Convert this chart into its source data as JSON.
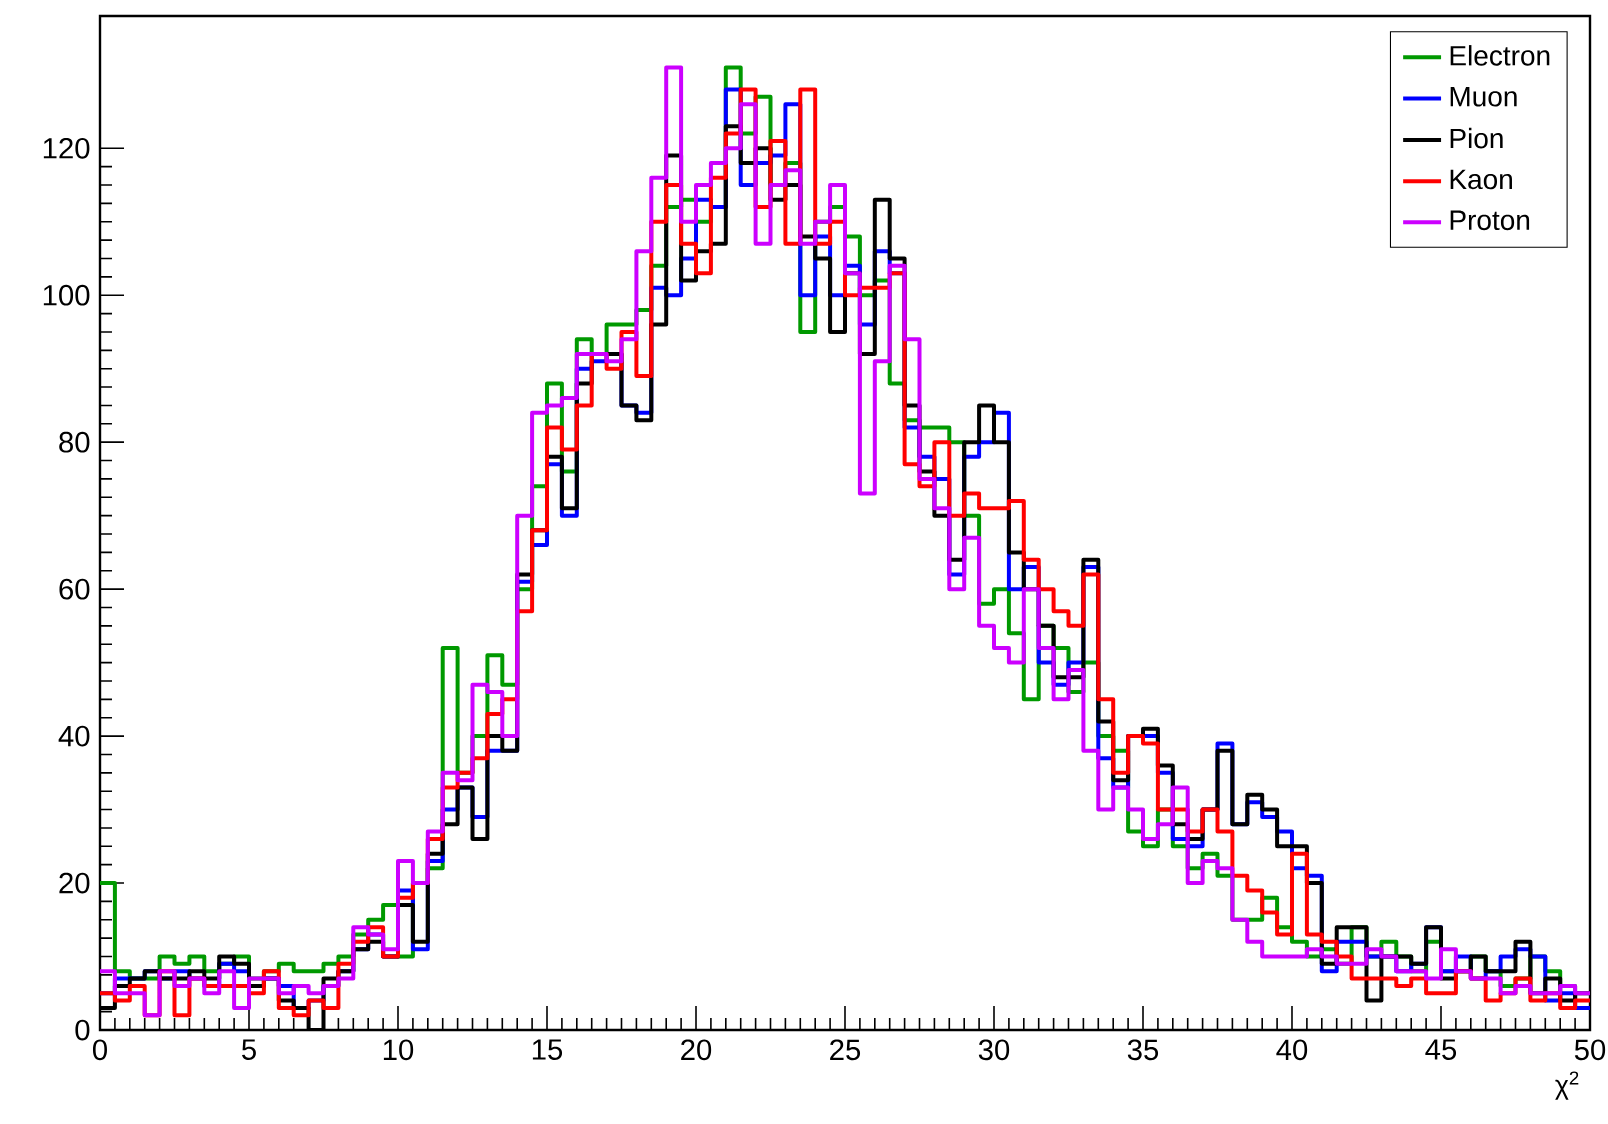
{
  "chart_data": {
    "type": "histogram",
    "xlabel": "χ$^{2}$",
    "bins": [
      0,
      0.5,
      1,
      1.5,
      2,
      2.5,
      3,
      3.5,
      4,
      4.5,
      5,
      5.5,
      6,
      6.5,
      7,
      7.5,
      8,
      8.5,
      9,
      9.5,
      10,
      10.5,
      11,
      11.5,
      12,
      12.5,
      13,
      13.5,
      14,
      14.5,
      15,
      15.5,
      16,
      16.5,
      17,
      17.5,
      18,
      18.5,
      19,
      19.5,
      20,
      20.5,
      21,
      21.5,
      22,
      22.5,
      23,
      23.5,
      24,
      24.5,
      25,
      25.5,
      26,
      26.5,
      27,
      27.5,
      28,
      28.5,
      29,
      29.5,
      30,
      30.5,
      31,
      31.5,
      32,
      32.5,
      33,
      33.5,
      34,
      34.5,
      35,
      35.5,
      36,
      36.5,
      37,
      37.5,
      38,
      38.5,
      39,
      39.5,
      40,
      40.5,
      41,
      41.5,
      42,
      42.5,
      43,
      43.5,
      44,
      44.5,
      45,
      45.5,
      46,
      46.5,
      47,
      47.5,
      48,
      48.5,
      49,
      49.5,
      50
    ],
    "series": [
      {
        "name": "Electron",
        "color": "#009900",
        "values": [
          20,
          8,
          7,
          7,
          10,
          9,
          10,
          8,
          9,
          10,
          7,
          8,
          9,
          8,
          8,
          9,
          10,
          13,
          15,
          17,
          10,
          20,
          22,
          52,
          35,
          40,
          51,
          47,
          60,
          74,
          88,
          76,
          94,
          92,
          96,
          96,
          98,
          104,
          112,
          113,
          110,
          112,
          131,
          122,
          127,
          115,
          118,
          95,
          110,
          112,
          108,
          100,
          102,
          88,
          83,
          82,
          82,
          80,
          70,
          58,
          60,
          54,
          45,
          55,
          52,
          46,
          50,
          40,
          38,
          27,
          25,
          30,
          25,
          22,
          24,
          21,
          15,
          15,
          18,
          14,
          12,
          10,
          11,
          9,
          14,
          10,
          12,
          10,
          8,
          12,
          8,
          8,
          10,
          8,
          6,
          7,
          10,
          8,
          6,
          3
        ]
      },
      {
        "name": "Muon",
        "color": "#0000ff",
        "values": [
          5,
          7,
          7,
          8,
          7,
          8,
          7,
          6,
          9,
          8,
          6,
          7,
          6,
          3,
          4,
          6,
          8,
          11,
          13,
          10,
          19,
          11,
          23,
          30,
          33,
          29,
          38,
          38,
          61,
          66,
          77,
          70,
          90,
          91,
          92,
          85,
          84,
          101,
          100,
          105,
          113,
          112,
          128,
          115,
          118,
          119,
          126,
          100,
          108,
          100,
          104,
          96,
          106,
          103,
          82,
          78,
          75,
          62,
          78,
          80,
          84,
          60,
          63,
          50,
          47,
          50,
          63,
          37,
          33,
          40,
          40,
          35,
          26,
          25,
          30,
          39,
          28,
          31,
          29,
          27,
          22,
          21,
          8,
          12,
          12,
          10,
          10,
          8,
          9,
          14,
          8,
          10,
          7,
          8,
          10,
          11,
          10,
          4,
          5,
          3
        ]
      },
      {
        "name": "Pion",
        "color": "#000000",
        "values": [
          3,
          6,
          7,
          8,
          7,
          7,
          8,
          7,
          10,
          9,
          6,
          7,
          4,
          3,
          0,
          7,
          8,
          11,
          12,
          10,
          17,
          12,
          24,
          28,
          33,
          26,
          40,
          38,
          62,
          68,
          78,
          71,
          88,
          92,
          92,
          85,
          83,
          96,
          119,
          102,
          106,
          107,
          123,
          118,
          120,
          113,
          115,
          108,
          105,
          95,
          103,
          92,
          113,
          105,
          85,
          76,
          70,
          64,
          80,
          85,
          80,
          65,
          60,
          55,
          48,
          48,
          64,
          42,
          34,
          40,
          41,
          36,
          28,
          26,
          30,
          38,
          28,
          32,
          30,
          25,
          25,
          20,
          9,
          14,
          14,
          4,
          10,
          10,
          9,
          14,
          7,
          8,
          10,
          8,
          8,
          12,
          5,
          7,
          4,
          5
        ]
      },
      {
        "name": "Kaon",
        "color": "#ff0000",
        "values": [
          5,
          4,
          6,
          2,
          8,
          2,
          7,
          6,
          6,
          6,
          5,
          8,
          3,
          2,
          4,
          3,
          9,
          12,
          14,
          10,
          18,
          20,
          26,
          33,
          35,
          37,
          43,
          45,
          57,
          68,
          82,
          79,
          85,
          92,
          90,
          95,
          89,
          110,
          115,
          107,
          103,
          116,
          122,
          128,
          112,
          121,
          107,
          128,
          107,
          110,
          100,
          101,
          101,
          103,
          77,
          74,
          80,
          70,
          73,
          71,
          71,
          72,
          64,
          60,
          57,
          55,
          62,
          45,
          35,
          40,
          39,
          30,
          30,
          27,
          30,
          27,
          21,
          19,
          16,
          13,
          24,
          13,
          12,
          10,
          7,
          7,
          7,
          6,
          7,
          5,
          5,
          8,
          7,
          4,
          5,
          7,
          4,
          5,
          3,
          4
        ]
      },
      {
        "name": "Proton",
        "color": "#cc00ff",
        "values": [
          8,
          5,
          5,
          2,
          8,
          6,
          7,
          5,
          8,
          3,
          7,
          7,
          5,
          6,
          5,
          6,
          7,
          14,
          13,
          11,
          23,
          20,
          27,
          35,
          34,
          47,
          46,
          40,
          70,
          84,
          85,
          86,
          92,
          92,
          91,
          94,
          106,
          116,
          131,
          110,
          115,
          118,
          120,
          126,
          107,
          115,
          117,
          107,
          110,
          115,
          103,
          73,
          91,
          104,
          94,
          75,
          71,
          60,
          67,
          55,
          52,
          50,
          60,
          52,
          45,
          49,
          38,
          30,
          33,
          30,
          26,
          28,
          33,
          20,
          23,
          22,
          15,
          12,
          10,
          10,
          10,
          11,
          10,
          9,
          9,
          11,
          10,
          8,
          8,
          7,
          11,
          8,
          7,
          7,
          5,
          6,
          5,
          5,
          6,
          5
        ]
      }
    ],
    "xlim": [
      0,
      50
    ],
    "ylim": [
      0,
      138
    ],
    "xticks": [
      0,
      5,
      10,
      15,
      20,
      25,
      30,
      35,
      40,
      45,
      50
    ],
    "yticks": [
      0,
      20,
      40,
      60,
      80,
      100,
      120
    ],
    "grid": false,
    "legend": "top right"
  }
}
